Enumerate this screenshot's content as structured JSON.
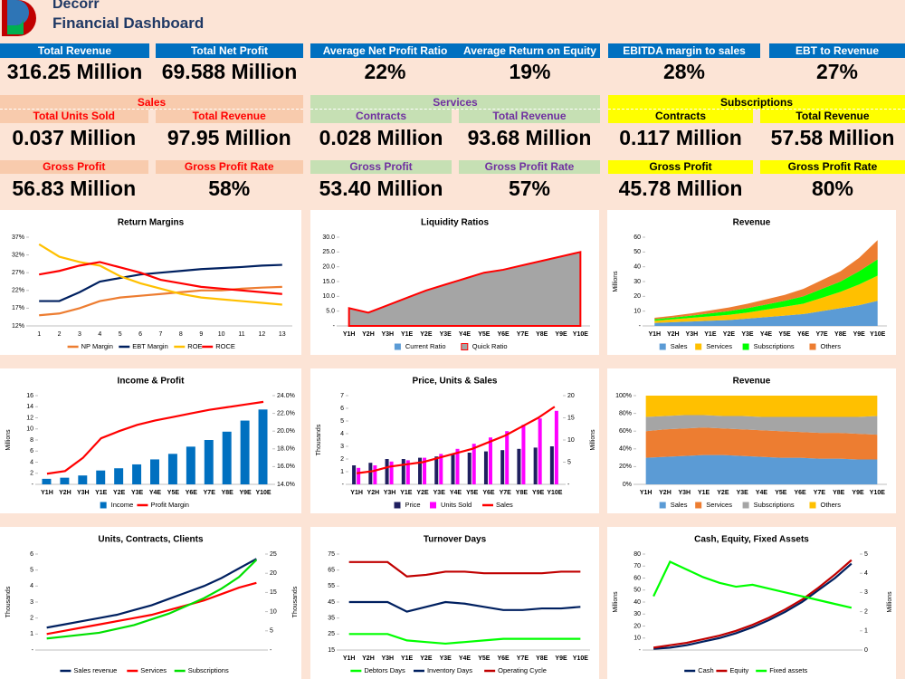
{
  "header": {
    "company": "Decorr",
    "title": "Financial Dashboard"
  },
  "kpis": [
    {
      "label": "Total Revenue",
      "value": "316.25 Million"
    },
    {
      "label": "Total Net Profit",
      "value": "69.588 Million"
    },
    {
      "label": "Average Net Profit Ratio",
      "value": "22%"
    },
    {
      "label": "Average Return on Equity",
      "value": "19%"
    },
    {
      "label": "EBITDA margin to sales",
      "value": "28%"
    },
    {
      "label": "EBT to Revenue",
      "value": "27%"
    }
  ],
  "segments": [
    {
      "name": "Sales",
      "color": "#f8cbad",
      "text_color": "#ff0000",
      "items": [
        {
          "label": "Total Units Sold",
          "value": "0.037 Million"
        },
        {
          "label": "Total Revenue",
          "value": "97.95 Million"
        },
        {
          "label": "Gross Profit",
          "value": "56.83 Million"
        },
        {
          "label": "Gross Profit Rate",
          "value": "58%"
        }
      ]
    },
    {
      "name": "Services",
      "color": "#c6e0b4",
      "text_color": "#7030a0",
      "items": [
        {
          "label": "Contracts",
          "value": "0.028 Million"
        },
        {
          "label": "Total Revenue",
          "value": "93.68 Million"
        },
        {
          "label": "Gross Profit",
          "value": "53.40 Million"
        },
        {
          "label": "Gross Profit Rate",
          "value": "57%"
        }
      ]
    },
    {
      "name": "Subscriptions",
      "color": "#ffff00",
      "text_color": "#000000",
      "items": [
        {
          "label": "Contracts",
          "value": "0.117 Million"
        },
        {
          "label": "Total Revenue",
          "value": "57.58 Million"
        },
        {
          "label": "Gross Profit",
          "value": "45.78 Million"
        },
        {
          "label": "Gross Profit Rate",
          "value": "80%"
        }
      ]
    }
  ],
  "chart_data": [
    {
      "type": "line",
      "title": "Return Margins",
      "categories": [
        "1",
        "2",
        "3",
        "4",
        "5",
        "6",
        "7",
        "8",
        "9",
        "10",
        "11",
        "12",
        "13"
      ],
      "ylim": [
        12,
        37
      ],
      "yticks": [
        {
          "value": 12,
          "label": "12%"
        },
        {
          "value": 17,
          "label": "17%"
        },
        {
          "value": 22,
          "label": "22%"
        },
        {
          "value": 27,
          "label": "27%"
        },
        {
          "value": 32,
          "label": "32%"
        },
        {
          "value": 37,
          "label": "37%"
        }
      ],
      "series": [
        {
          "name": "NP Margin",
          "color": "#ed7d31",
          "values": [
            15,
            15.5,
            17,
            19,
            20,
            20.5,
            21,
            21.5,
            22,
            22,
            22.5,
            22.8,
            23
          ]
        },
        {
          "name": "EBT Margin",
          "color": "#002060",
          "values": [
            19,
            19,
            21.5,
            24.5,
            25.5,
            26.5,
            27,
            27.5,
            28,
            28.3,
            28.6,
            29,
            29.2
          ]
        },
        {
          "name": "ROE",
          "color": "#ffc000",
          "values": [
            35,
            31.5,
            30,
            29,
            26,
            24,
            22.5,
            21,
            20,
            19.5,
            19,
            18.5,
            18
          ]
        },
        {
          "name": "ROCE",
          "color": "#ff0000",
          "values": [
            26.5,
            27.5,
            29,
            30,
            28.5,
            27,
            25,
            24,
            23,
            22.5,
            22,
            21.5,
            21
          ]
        }
      ]
    },
    {
      "type": "area",
      "title": "Liquidity Ratios",
      "categories": [
        "Y1H",
        "Y2H",
        "Y3H",
        "Y1E",
        "Y2E",
        "Y3E",
        "Y4E",
        "Y5E",
        "Y6E",
        "Y7E",
        "Y8E",
        "Y9E",
        "Y10E"
      ],
      "ylim": [
        0,
        30
      ],
      "yticks": [
        {
          "value": 0,
          "label": "-"
        },
        {
          "value": 5,
          "label": "5.0"
        },
        {
          "value": 10,
          "label": "10.0"
        },
        {
          "value": 15,
          "label": "15.0"
        },
        {
          "value": 20,
          "label": "20.0"
        },
        {
          "value": 25,
          "label": "25.0"
        },
        {
          "value": 30,
          "label": "30.0"
        }
      ],
      "stacked": false,
      "series": [
        {
          "name": "Current Ratio",
          "color": "#5b9bd5",
          "values": [
            3,
            2.5,
            3.5,
            5,
            6,
            7,
            8,
            8.8,
            9.5,
            10.5,
            11,
            11.8,
            12.5
          ]
        },
        {
          "name": "Quick Ratio",
          "color": "#a5a5a5",
          "line_color": "#ff0000",
          "values": [
            6,
            4.5,
            7,
            9.5,
            12,
            14,
            16,
            18,
            19,
            20.5,
            22,
            23.5,
            25
          ]
        }
      ]
    },
    {
      "type": "area",
      "title": "Revenue",
      "ylabel": "Millions",
      "categories": [
        "Y1H",
        "Y2H",
        "Y3H",
        "Y1E",
        "Y2E",
        "Y3E",
        "Y4E",
        "Y5E",
        "Y6E",
        "Y7E",
        "Y8E",
        "Y9E",
        "Y10E"
      ],
      "ylim": [
        0,
        60
      ],
      "yticks": [
        {
          "value": 0,
          "label": "-"
        },
        10,
        20,
        30,
        40,
        50,
        60
      ],
      "stacked": true,
      "series": [
        {
          "name": "Sales",
          "color": "#5b9bd5",
          "values": [
            2,
            2.5,
            3,
            3.5,
            4,
            5,
            6,
            7,
            8,
            10,
            12,
            14,
            17
          ]
        },
        {
          "name": "Services",
          "color": "#ffc000",
          "values": [
            1.5,
            2,
            2.5,
            3,
            3.5,
            4,
            5,
            6,
            7,
            9,
            11,
            14,
            17
          ]
        },
        {
          "name": "Subscriptions",
          "color": "#00ff00",
          "values": [
            1,
            1.2,
            1.5,
            2,
            2.5,
            3,
            3.5,
            4,
            5,
            6,
            7,
            9,
            11
          ]
        },
        {
          "name": "Others",
          "color": "#ed7d31",
          "values": [
            1,
            1.2,
            1.5,
            2,
            2.5,
            3,
            3.5,
            4,
            5,
            6,
            7,
            9,
            13
          ]
        }
      ]
    },
    {
      "type": "combo",
      "title": "Income & Profit",
      "ylabel": "Millions",
      "categories": [
        "Y1H",
        "Y2H",
        "Y3H",
        "Y1E",
        "Y2E",
        "Y3E",
        "Y4E",
        "Y5E",
        "Y6E",
        "Y7E",
        "Y8E",
        "Y9E",
        "Y10E"
      ],
      "ylim": [
        0,
        16
      ],
      "yticks": [
        {
          "value": 0,
          "label": "-"
        },
        2,
        4,
        6,
        8,
        10,
        12,
        14,
        16
      ],
      "y2lim": [
        14,
        24
      ],
      "y2ticks": [
        {
          "value": 14,
          "label": "14.0%"
        },
        {
          "value": 16,
          "label": "16.0%"
        },
        {
          "value": 18,
          "label": "18.0%"
        },
        {
          "value": 20,
          "label": "20.0%"
        },
        {
          "value": 22,
          "label": "22.0%"
        },
        {
          "value": 24,
          "label": "24.0%"
        }
      ],
      "series": [
        {
          "name": "Income",
          "kind": "bar",
          "color": "#0070c0",
          "values": [
            1,
            1.2,
            1.6,
            2.5,
            2.9,
            3.6,
            4.5,
            5.5,
            6.8,
            8,
            9.5,
            11.5,
            13.5
          ]
        },
        {
          "name": "Profit Margin",
          "kind": "line",
          "axis": "y2",
          "color": "#ff0000",
          "values": [
            15.2,
            15.5,
            17,
            19.2,
            20,
            20.7,
            21.2,
            21.6,
            22,
            22.4,
            22.7,
            23,
            23.3
          ]
        }
      ]
    },
    {
      "type": "combo",
      "title": "Price, Units & Sales",
      "ylabel": "Thousands",
      "y2label": "Millions",
      "categories": [
        "Y1H",
        "Y2H",
        "Y3H",
        "Y1E",
        "Y2E",
        "Y3E",
        "Y4E",
        "Y5E",
        "Y6E",
        "Y7E",
        "Y8E",
        "Y9E",
        "Y10E"
      ],
      "ylim": [
        0,
        7
      ],
      "yticks": [
        {
          "value": 0,
          "label": "-"
        },
        1,
        2,
        3,
        4,
        5,
        6,
        7
      ],
      "y2lim": [
        0,
        20
      ],
      "y2ticks": [
        {
          "value": 0,
          "label": "-"
        },
        5,
        10,
        15,
        20
      ],
      "series": [
        {
          "name": "Price",
          "kind": "bar",
          "color": "#1f1f5f",
          "values": [
            1.5,
            1.7,
            2,
            2,
            2.1,
            2.2,
            2.4,
            2.5,
            2.6,
            2.7,
            2.8,
            2.9,
            3
          ]
        },
        {
          "name": "Units Sold",
          "kind": "bar",
          "color": "#ff00ff",
          "values": [
            1.3,
            1.5,
            1.8,
            1.9,
            2.1,
            2.4,
            2.8,
            3.2,
            3.7,
            4.2,
            4.7,
            5.2,
            5.8
          ]
        },
        {
          "name": "Sales",
          "kind": "line",
          "axis": "y2",
          "color": "#ff0000",
          "values": [
            2.5,
            3,
            4,
            4.5,
            5,
            6,
            7,
            8,
            9.5,
            11,
            13,
            15,
            17.5
          ]
        }
      ]
    },
    {
      "type": "area",
      "title": "Revenue",
      "categories": [
        "Y1H",
        "Y2H",
        "Y3H",
        "Y1E",
        "Y2E",
        "Y3E",
        "Y4E",
        "Y5E",
        "Y6E",
        "Y7E",
        "Y8E",
        "Y9E",
        "Y10E"
      ],
      "ylim": [
        0,
        100
      ],
      "yticks": [
        {
          "value": 0,
          "label": "0%"
        },
        {
          "value": 20,
          "label": "20%"
        },
        {
          "value": 40,
          "label": "40%"
        },
        {
          "value": 60,
          "label": "60%"
        },
        {
          "value": 80,
          "label": "80%"
        },
        {
          "value": 100,
          "label": "100%"
        }
      ],
      "stacked": true,
      "series": [
        {
          "name": "Sales",
          "color": "#5b9bd5",
          "values": [
            30,
            31,
            32,
            33,
            33,
            32,
            31,
            30,
            30,
            29,
            29,
            28,
            28
          ]
        },
        {
          "name": "Services",
          "color": "#ed7d31",
          "values": [
            30,
            31,
            31,
            31,
            30,
            30,
            30,
            30,
            29,
            29,
            29,
            29,
            28
          ]
        },
        {
          "name": "Subscriptions",
          "color": "#a5a5a5",
          "values": [
            16,
            15,
            15,
            14,
            14,
            15,
            15,
            16,
            17,
            18,
            18,
            19,
            21
          ]
        },
        {
          "name": "Others",
          "color": "#ffc000",
          "values": [
            24,
            23,
            22,
            22,
            23,
            23,
            24,
            24,
            24,
            24,
            24,
            24,
            23
          ]
        }
      ]
    },
    {
      "type": "line",
      "title": "Units, Contracts, Clients",
      "ylabel": "Thousands",
      "y2label": "Thousands",
      "categories": [
        null,
        null,
        null,
        null,
        null,
        null,
        null,
        null,
        null,
        null,
        null,
        null,
        null
      ],
      "ylim": [
        0,
        6
      ],
      "yticks": [
        {
          "value": 0,
          "label": "-"
        },
        1,
        2,
        3,
        4,
        5,
        6
      ],
      "y2lim": [
        0,
        25
      ],
      "y2ticks": [
        {
          "value": 0,
          "label": "-"
        },
        5,
        10,
        15,
        20,
        25
      ],
      "series": [
        {
          "name": "Sales revenue",
          "color": "#002060",
          "values": [
            1.4,
            1.6,
            1.8,
            2,
            2.2,
            2.5,
            2.8,
            3.2,
            3.6,
            4,
            4.5,
            5.1,
            5.7
          ]
        },
        {
          "name": "Services",
          "color": "#ff0000",
          "values": [
            1,
            1.2,
            1.4,
            1.6,
            1.8,
            2,
            2.2,
            2.5,
            2.8,
            3.1,
            3.5,
            3.9,
            4.2
          ]
        },
        {
          "name": "Subscriptions",
          "axis": "y2",
          "color": "#00e000",
          "values": [
            3,
            3.5,
            4,
            4.5,
            5.5,
            6.5,
            8,
            9.5,
            11.5,
            13.5,
            16,
            19,
            23.5
          ]
        }
      ]
    },
    {
      "type": "line",
      "title": "Turnover Days",
      "categories": [
        "Y1H",
        "Y2H",
        "Y3H",
        "Y1E",
        "Y2E",
        "Y3E",
        "Y4E",
        "Y5E",
        "Y6E",
        "Y7E",
        "Y8E",
        "Y9E",
        "Y10E"
      ],
      "ylim": [
        15,
        75
      ],
      "yticks": [
        15,
        25,
        35,
        45,
        55,
        65,
        75
      ],
      "series": [
        {
          "name": "Debtors Days",
          "color": "#00ff00",
          "values": [
            25,
            25,
            25,
            21,
            20,
            19,
            20,
            21,
            22,
            22,
            22,
            22,
            22
          ]
        },
        {
          "name": "Inventory Days",
          "color": "#002060",
          "values": [
            45,
            45,
            45,
            39,
            42,
            45,
            44,
            42,
            40,
            40,
            41,
            41,
            42
          ]
        },
        {
          "name": "Operating Cycle",
          "color": "#c00000",
          "values": [
            70,
            70,
            70,
            61,
            62,
            64,
            64,
            63,
            63,
            63,
            63,
            64,
            64
          ]
        }
      ]
    },
    {
      "type": "line",
      "title": "Cash, Equity, Fixed Assets",
      "ylabel": "Millions",
      "y2label": "Millions",
      "categories": [
        null,
        null,
        null,
        null,
        null,
        null,
        null,
        null,
        null,
        null,
        null,
        null,
        null
      ],
      "ylim": [
        0,
        80
      ],
      "yticks": [
        {
          "value": 0,
          "label": "-"
        },
        10,
        20,
        30,
        40,
        50,
        60,
        70,
        80
      ],
      "y2lim": [
        0,
        5
      ],
      "y2ticks": [
        0,
        1,
        2,
        3,
        4,
        5
      ],
      "series": [
        {
          "name": "Cash",
          "color": "#002060",
          "values": [
            1,
            2,
            4,
            7,
            10,
            14,
            19,
            25,
            32,
            40,
            50,
            60,
            72
          ]
        },
        {
          "name": "Equity",
          "color": "#c00000",
          "values": [
            2,
            4,
            6,
            9,
            12,
            16,
            21,
            27,
            34,
            42,
            52,
            63,
            75
          ]
        },
        {
          "name": "Fixed assets",
          "axis": "y2",
          "color": "#00ff00",
          "values": [
            2.8,
            4.6,
            4.2,
            3.8,
            3.5,
            3.3,
            3.4,
            3.2,
            3.0,
            2.8,
            2.6,
            2.4,
            2.2
          ]
        }
      ]
    }
  ]
}
